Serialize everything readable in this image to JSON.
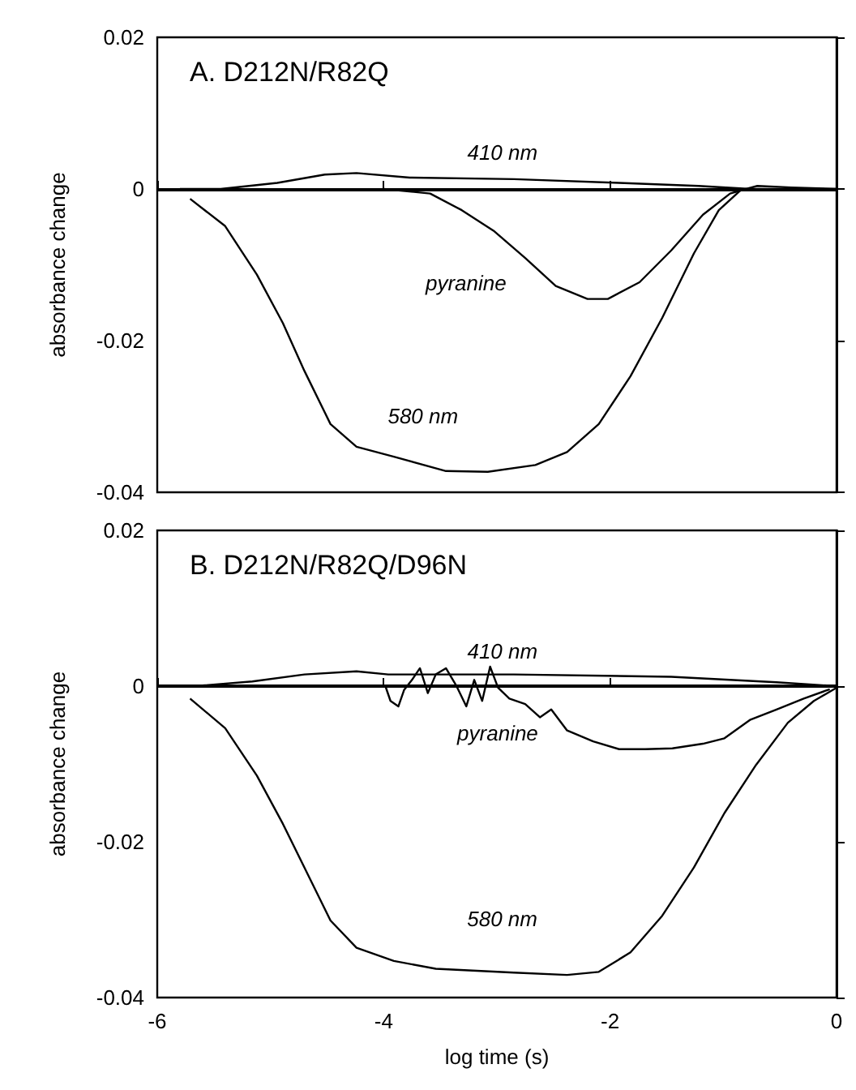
{
  "chart_data": [
    {
      "type": "line",
      "title": "A. D212N/R82Q",
      "ylabel": "absorbance change",
      "xlim": [
        -6,
        0
      ],
      "xticks": [
        -6,
        -4,
        -2,
        0
      ],
      "ylim": [
        -0.04,
        0.02
      ],
      "yticks": [
        0.02,
        0,
        -0.02,
        -0.04
      ],
      "tick_labels": "y",
      "grid": false,
      "legend": false,
      "marker": "none",
      "line_style": "solid",
      "ref_lines": [
        {
          "axis": "y",
          "value": 0,
          "color": "#000000"
        }
      ],
      "series": [
        {
          "name": "410 nm",
          "color": "#000000",
          "x": [
            -5.8,
            -5.44,
            -4.94,
            -4.52,
            -4.24,
            -3.77,
            -2.85,
            -1.92,
            -1.22,
            -0.76,
            -0.3,
            0
          ],
          "values": [
            0,
            0,
            0.0008,
            0.0019,
            0.0021,
            0.0015,
            0.0013,
            0.0008,
            0.0004,
            0,
            0,
            0
          ]
        },
        {
          "name": "pyranine",
          "color": "#000000",
          "x": [
            -4.0,
            -3.59,
            -3.31,
            -3.03,
            -2.75,
            -2.48,
            -2.2,
            -2.02,
            -1.74,
            -1.46,
            -1.18,
            -0.94,
            -0.8
          ],
          "values": [
            0,
            -0.0006,
            -0.0028,
            -0.0055,
            -0.0091,
            -0.0128,
            -0.0145,
            -0.0145,
            -0.0123,
            -0.0081,
            -0.0034,
            -0.0006,
            0
          ]
        },
        {
          "name": "580 nm",
          "color": "#000000",
          "x": [
            -5.71,
            -5.4,
            -5.12,
            -4.89,
            -4.7,
            -4.47,
            -4.24,
            -3.91,
            -3.45,
            -3.08,
            -2.66,
            -2.38,
            -2.1,
            -1.82,
            -1.54,
            -1.26,
            -1.04,
            -0.85,
            -0.7,
            -0.4,
            0
          ],
          "values": [
            -0.0013,
            -0.0049,
            -0.0113,
            -0.0177,
            -0.024,
            -0.031,
            -0.034,
            -0.0353,
            -0.0372,
            -0.0373,
            -0.0364,
            -0.0347,
            -0.031,
            -0.0247,
            -0.017,
            -0.0085,
            -0.0028,
            -0.0002,
            0.0004,
            0.0002,
            0
          ]
        }
      ]
    },
    {
      "type": "line",
      "title": "B. D212N/R82Q/D96N",
      "xlabel": "log time (s)",
      "ylabel": "absorbance change",
      "xlim": [
        -6,
        0
      ],
      "xticks": [
        -6,
        -4,
        -2,
        0
      ],
      "ylim": [
        -0.04,
        0.02
      ],
      "yticks": [
        0.02,
        0,
        -0.02,
        -0.04
      ],
      "grid": false,
      "legend": false,
      "marker": "none",
      "line_style": "solid",
      "ref_lines": [
        {
          "axis": "y",
          "value": 0,
          "color": "#000000"
        }
      ],
      "series": [
        {
          "name": "410 nm",
          "color": "#000000",
          "x": [
            -5.67,
            -5.16,
            -4.7,
            -4.24,
            -3.96,
            -2.85,
            -1.46,
            -0.53,
            0
          ],
          "values": [
            0,
            0.0006,
            0.0015,
            0.0019,
            0.0015,
            0.0015,
            0.0012,
            0.0005,
            0
          ]
        },
        {
          "name": "pyranine",
          "color": "#000000",
          "x": [
            -3.985,
            -3.94,
            -3.87,
            -3.82,
            -3.75,
            -3.68,
            -3.61,
            -3.54,
            -3.45,
            -3.36,
            -3.27,
            -3.2,
            -3.13,
            -3.06,
            -2.99,
            -2.89,
            -2.75,
            -2.62,
            -2.52,
            -2.38,
            -2.15,
            -1.92,
            -1.69,
            -1.45,
            -1.18,
            -0.99,
            -0.76,
            -0.53,
            -0.29,
            -0.06
          ],
          "values": [
            0,
            -0.0019,
            -0.0026,
            -0.0005,
            0.0008,
            0.0023,
            -0.0009,
            0.0015,
            0.0023,
            0.0001,
            -0.0026,
            0.0008,
            -0.0019,
            0.0025,
            -0.0002,
            -0.0016,
            -0.0023,
            -0.004,
            -0.003,
            -0.0057,
            -0.0071,
            -0.0081,
            -0.0081,
            -0.008,
            -0.0074,
            -0.0067,
            -0.0043,
            -0.003,
            -0.0016,
            -0.0004
          ]
        },
        {
          "name": "580 nm",
          "color": "#000000",
          "x": [
            -5.71,
            -5.4,
            -5.12,
            -4.89,
            -4.7,
            -4.47,
            -4.24,
            -3.91,
            -3.54,
            -2.85,
            -2.38,
            -2.1,
            -1.82,
            -1.54,
            -1.26,
            -0.99,
            -0.71,
            -0.43,
            -0.2,
            0
          ],
          "values": [
            -0.0016,
            -0.0054,
            -0.0115,
            -0.0177,
            -0.0233,
            -0.0301,
            -0.0336,
            -0.0353,
            -0.0363,
            -0.0368,
            -0.0371,
            -0.0367,
            -0.0342,
            -0.0295,
            -0.0233,
            -0.0163,
            -0.0101,
            -0.0047,
            -0.0019,
            -0.0002
          ]
        }
      ]
    }
  ]
}
